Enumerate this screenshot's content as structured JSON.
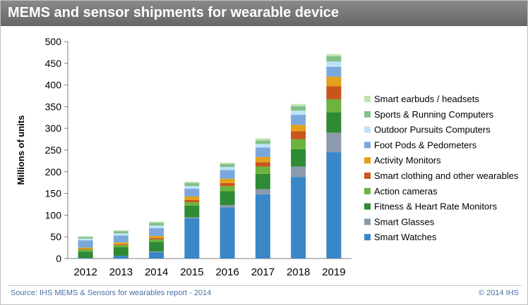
{
  "title": "MEMS and sensor shipments for wearable device",
  "source": "Source: IHS MEMS & Sensors for wearables report - 2014",
  "copyright": "© 2014 IHS",
  "chart_data": {
    "type": "bar",
    "stacked": true,
    "title": "MEMS and sensor shipments for wearable device",
    "ylabel": "Millions of units",
    "xlabel": "",
    "ylim": [
      0,
      500
    ],
    "yticks": [
      0,
      50,
      100,
      150,
      200,
      250,
      300,
      350,
      400,
      450,
      500
    ],
    "grid": false,
    "legend_position": "right",
    "categories": [
      "2012",
      "2013",
      "2014",
      "2015",
      "2016",
      "2017",
      "2018",
      "2019"
    ],
    "series": [
      {
        "name": "Smart Watches",
        "color": "#3a87c8",
        "values": [
          1,
          6,
          15,
          93,
          118,
          148,
          188,
          245
        ]
      },
      {
        "name": "Smart Glasses",
        "color": "#8c9bac",
        "values": [
          0,
          0,
          1,
          2,
          5,
          12,
          24,
          45
        ]
      },
      {
        "name": "Fitness & Heart Rate Monitors",
        "color": "#2f8a35",
        "values": [
          15,
          20,
          22,
          27,
          32,
          35,
          40,
          47
        ]
      },
      {
        "name": "Action cameras",
        "color": "#6cb33f",
        "values": [
          5,
          5,
          6,
          8,
          12,
          17,
          23,
          30
        ]
      },
      {
        "name": "Smart clothing and other wearables",
        "color": "#c8561c",
        "values": [
          1,
          2,
          3,
          5,
          7,
          10,
          18,
          30
        ]
      },
      {
        "name": "Activity Monitors",
        "color": "#e3a21a",
        "values": [
          3,
          4,
          5,
          8,
          10,
          12,
          15,
          22
        ]
      },
      {
        "name": "Foot Pods & Pedometers",
        "color": "#7ba8dc",
        "values": [
          17,
          16,
          18,
          18,
          20,
          22,
          23,
          23
        ]
      },
      {
        "name": "Outdoor Pursuits Computers",
        "color": "#bfe3f5",
        "values": [
          4,
          5,
          6,
          6,
          7,
          8,
          10,
          12
        ]
      },
      {
        "name": "Sports & Running Computers",
        "color": "#80c08a",
        "values": [
          4,
          5,
          6,
          7,
          7,
          8,
          10,
          12
        ]
      },
      {
        "name": "Smart earbuds / headsets",
        "color": "#c2e3b0",
        "values": [
          1,
          2,
          3,
          3,
          3,
          5,
          5,
          5
        ]
      }
    ]
  }
}
